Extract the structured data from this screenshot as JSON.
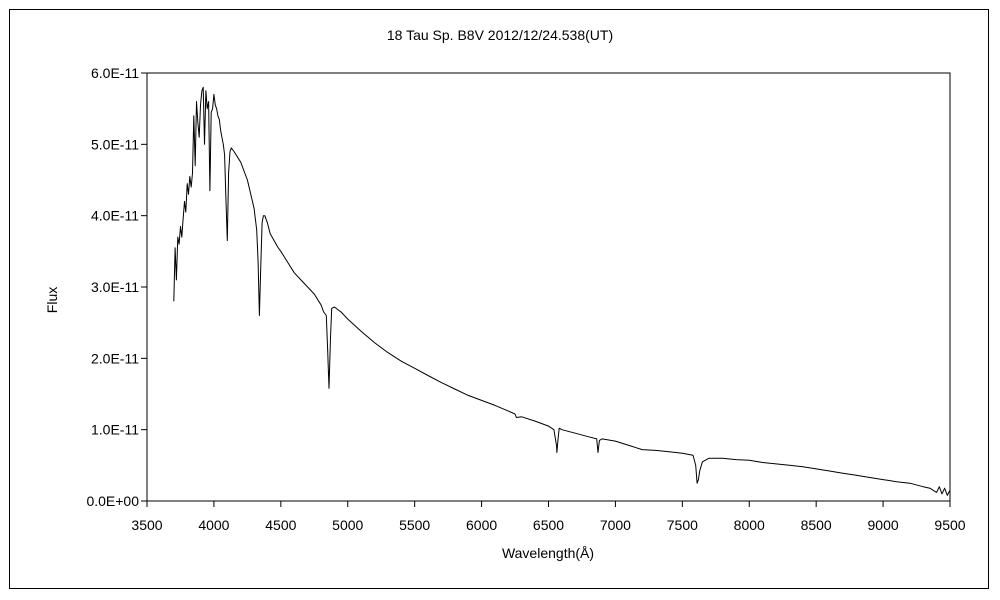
{
  "chart_data": {
    "type": "line",
    "title": "18 Tau    Sp. B8V     2012/12/24.538(UT)",
    "xlabel": "Wavelength(Å)",
    "ylabel": "Flux",
    "xlim": [
      3500,
      9500
    ],
    "ylim": [
      0,
      6e-11
    ],
    "xticks": [
      3500,
      4000,
      4500,
      5000,
      5500,
      6000,
      6500,
      7000,
      7500,
      8000,
      8500,
      9000,
      9500
    ],
    "xtick_labels": [
      "3500",
      "4000",
      "4500",
      "5000",
      "5500",
      "6000",
      "6500",
      "7000",
      "7500",
      "8000",
      "8500",
      "9000",
      "9500"
    ],
    "yticks": [
      0,
      1e-11,
      2e-11,
      3e-11,
      4e-11,
      5e-11,
      6e-11
    ],
    "ytick_labels": [
      "0.0E+00",
      "1.0E-11",
      "2.0E-11",
      "3.0E-11",
      "4.0E-11",
      "5.0E-11",
      "6.0E-11"
    ],
    "grid": false,
    "legend": "none",
    "line_color": "#000000",
    "series": [
      {
        "x": [
          3700,
          3710,
          3720,
          3730,
          3740,
          3750,
          3760,
          3770,
          3780,
          3790,
          3800,
          3810,
          3820,
          3830,
          3840,
          3850,
          3860,
          3870,
          3880,
          3890,
          3900,
          3910,
          3920,
          3930,
          3940,
          3950,
          3960,
          3970,
          3980,
          3990,
          4000,
          4010,
          4020,
          4030,
          4040,
          4050,
          4060,
          4070,
          4080,
          4090,
          4100,
          4110,
          4120,
          4130,
          4150,
          4200,
          4250,
          4300,
          4320,
          4330,
          4340,
          4350,
          4360,
          4370,
          4380,
          4400,
          4420,
          4450,
          4480,
          4500,
          4550,
          4600,
          4650,
          4700,
          4750,
          4800,
          4820,
          4840,
          4850,
          4860,
          4870,
          4880,
          4900,
          4950,
          5000,
          5100,
          5200,
          5300,
          5400,
          5500,
          5600,
          5700,
          5800,
          5900,
          6000,
          6100,
          6200,
          6250,
          6260,
          6300,
          6400,
          6500,
          6540,
          6560,
          6563,
          6570,
          6580,
          6600,
          6700,
          6800,
          6860,
          6870,
          6880,
          6900,
          7000,
          7100,
          7200,
          7300,
          7400,
          7500,
          7580,
          7600,
          7610,
          7620,
          7630,
          7650,
          7700,
          7800,
          7900,
          8000,
          8100,
          8200,
          8300,
          8400,
          8500,
          8600,
          8700,
          8800,
          8900,
          9000,
          9100,
          9200,
          9300,
          9350,
          9400,
          9420,
          9440,
          9460,
          9480,
          9500
        ],
        "y": [
          2.8e-11,
          3.55e-11,
          3.1e-11,
          3.7e-11,
          3.6e-11,
          3.85e-11,
          3.7e-11,
          3.95e-11,
          4.2e-11,
          4.05e-11,
          4.45e-11,
          4.3e-11,
          4.55e-11,
          4.4e-11,
          4.6e-11,
          5.4e-11,
          4.7e-11,
          5.6e-11,
          5.3e-11,
          5.1e-11,
          5.55e-11,
          5.75e-11,
          5.8e-11,
          5e-11,
          5.75e-11,
          5.5e-11,
          5.6e-11,
          4.35e-11,
          5.45e-11,
          5.5e-11,
          5.7e-11,
          5.55e-11,
          5.5e-11,
          5.4e-11,
          5.35e-11,
          5.2e-11,
          5.1e-11,
          5e-11,
          4.85e-11,
          4.2e-11,
          3.65e-11,
          4.6e-11,
          4.9e-11,
          4.95e-11,
          4.9e-11,
          4.75e-11,
          4.5e-11,
          4.1e-11,
          3.8e-11,
          3.35e-11,
          2.6e-11,
          3.3e-11,
          3.9e-11,
          4e-11,
          4e-11,
          3.9e-11,
          3.75e-11,
          3.65e-11,
          3.55e-11,
          3.5e-11,
          3.35e-11,
          3.2e-11,
          3.1e-11,
          3e-11,
          2.9e-11,
          2.75e-11,
          2.65e-11,
          2.6e-11,
          2.1e-11,
          1.58e-11,
          2.25e-11,
          2.7e-11,
          2.72e-11,
          2.65e-11,
          2.55e-11,
          2.38e-11,
          2.22e-11,
          2.08e-11,
          1.96e-11,
          1.86e-11,
          1.76e-11,
          1.66e-11,
          1.57e-11,
          1.48e-11,
          1.41e-11,
          1.34e-11,
          1.26e-11,
          1.22e-11,
          1.17e-11,
          1.18e-11,
          1.12e-11,
          1.05e-11,
          1e-11,
          7.8e-12,
          6.8e-12,
          8.5e-12,
          1.02e-11,
          1e-11,
          9.5e-12,
          9e-12,
          8.7e-12,
          6.8e-12,
          8.5e-12,
          8.7e-12,
          8.4e-12,
          7.8e-12,
          7.2e-12,
          7.1e-12,
          6.9e-12,
          6.7e-12,
          6.4e-12,
          5e-12,
          2.5e-12,
          3e-12,
          4.2e-12,
          5.5e-12,
          6e-12,
          6e-12,
          5.8e-12,
          5.7e-12,
          5.4e-12,
          5.2e-12,
          5e-12,
          4.8e-12,
          4.5e-12,
          4.2e-12,
          3.9e-12,
          3.6e-12,
          3.3e-12,
          3e-12,
          2.7e-12,
          2.5e-12,
          2e-12,
          1.8e-12,
          1.2e-12,
          2e-12,
          1e-12,
          1.8e-12,
          8e-13,
          1.5e-12
        ]
      }
    ]
  }
}
